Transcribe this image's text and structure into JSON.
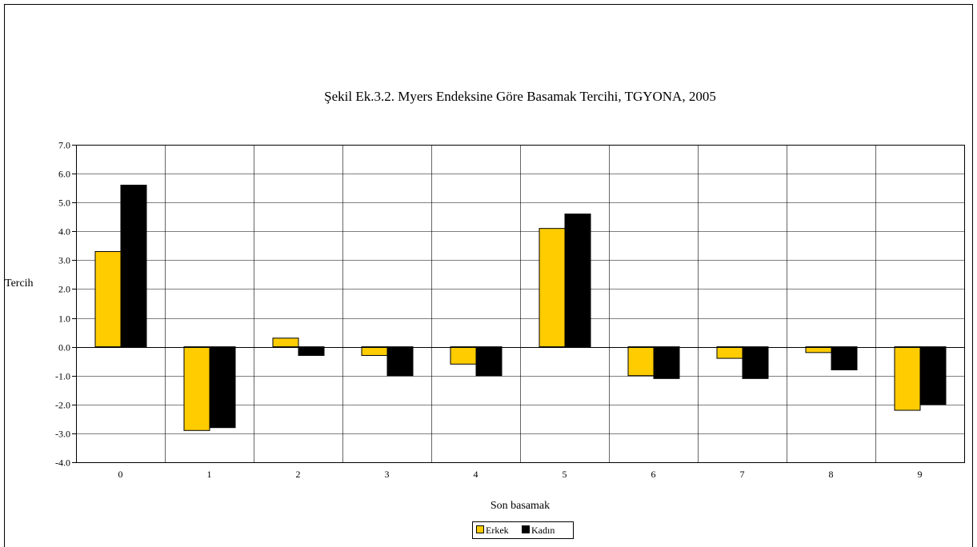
{
  "chart_data": {
    "type": "bar",
    "title": "Şekil Ek.3.2. Myers Endeksine Göre Basamak Tercihi, TGYONA, 2005",
    "xlabel": "Son basamak",
    "ylabel": "Tercih",
    "categories": [
      "0",
      "1",
      "2",
      "3",
      "4",
      "5",
      "6",
      "7",
      "8",
      "9"
    ],
    "ylim": [
      -4,
      7
    ],
    "yticks": [
      "7.0",
      "6.0",
      "5.0",
      "4.0",
      "3.0",
      "2.0",
      "1.0",
      "0.0",
      "-1.0",
      "-2.0",
      "-3.0",
      "-4.0"
    ],
    "grid": true,
    "legend_position": "bottom",
    "series": [
      {
        "name": "Erkek",
        "color": "#FFCC00",
        "values": [
          3.3,
          -2.9,
          0.3,
          -0.3,
          -0.6,
          4.1,
          -1.0,
          -0.4,
          -0.2,
          -2.2
        ]
      },
      {
        "name": "Kadın",
        "color": "#000000",
        "values": [
          5.6,
          -2.8,
          -0.3,
          -1.0,
          -1.0,
          4.6,
          -1.1,
          -1.1,
          -0.8,
          -2.0
        ]
      }
    ]
  }
}
